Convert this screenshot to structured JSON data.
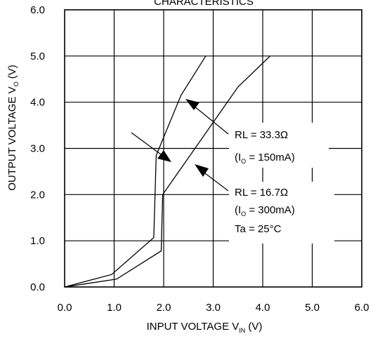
{
  "chart_data": {
    "type": "line",
    "title": "CHARACTERISTICS",
    "xlabel": {
      "main": "INPUT VOLTAGE V",
      "sub": "IN",
      "unit": " (V)"
    },
    "ylabel": {
      "main": "OUTPUT VOLTAGE V",
      "sub": "O",
      "unit": " (V)"
    },
    "xlim": [
      0,
      6
    ],
    "ylim": [
      0,
      6
    ],
    "xticks": [
      "0.0",
      "1.0",
      "2.0",
      "3.0",
      "4.0",
      "5.0",
      "6.0"
    ],
    "yticks": [
      "0.0",
      "1.0",
      "2.0",
      "3.0",
      "4.0",
      "5.0",
      "6.0"
    ],
    "grid": true,
    "series": [
      {
        "name": "RL = 33.3Ω (IO = 150mA)",
        "x": [
          0.0,
          0.95,
          1.8,
          1.85,
          2.35,
          2.85
        ],
        "y": [
          0.0,
          0.27,
          1.07,
          2.85,
          4.15,
          5.0
        ]
      },
      {
        "name": "RL = 16.7Ω (IO = 300mA)",
        "x": [
          0.0,
          1.05,
          1.95,
          1.98,
          3.5,
          4.15
        ],
        "y": [
          0.0,
          0.17,
          0.78,
          2.0,
          4.33,
          5.0
        ]
      }
    ],
    "annotations": {
      "curve1_line1": "RL = 33.3Ω",
      "curve1_line2": {
        "pre": "(I",
        "sub": "O",
        "post": " = 150mA)"
      },
      "curve2_line1": "RL = 16.7Ω",
      "curve2_line2": {
        "pre": "(I",
        "sub": "O",
        "post": " = 300mA)"
      },
      "condition": "Ta = 25°C"
    }
  }
}
